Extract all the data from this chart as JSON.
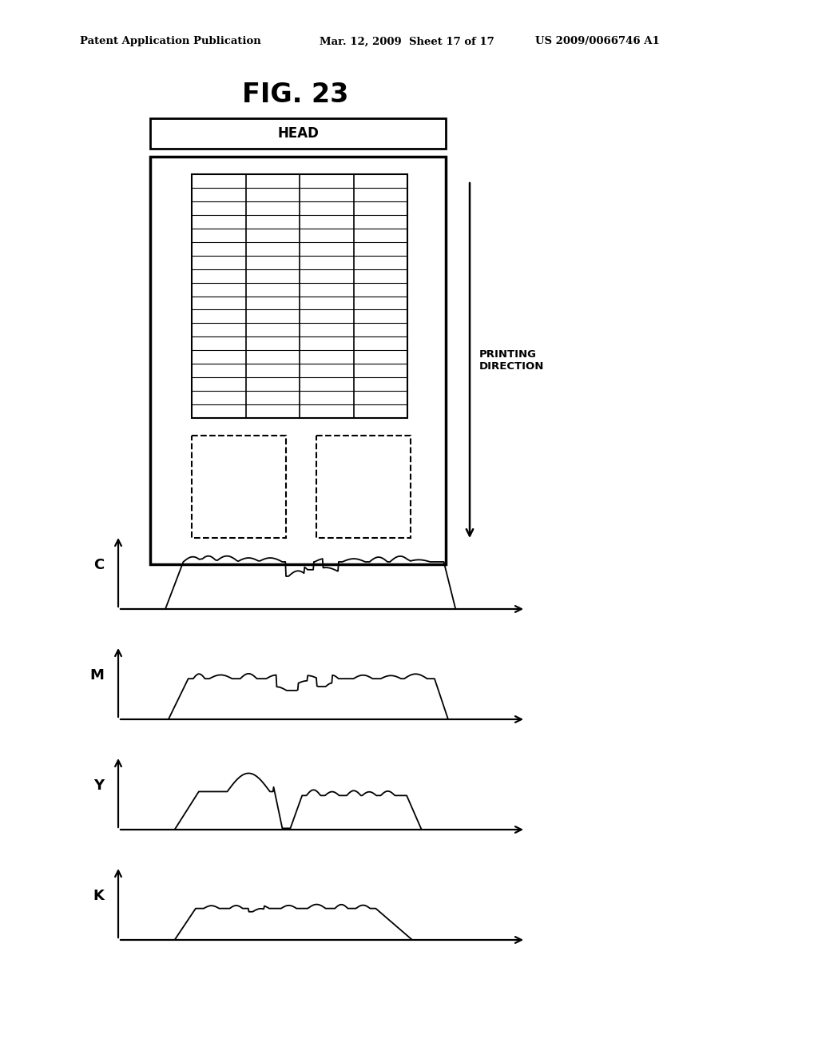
{
  "title": "FIG. 23",
  "header_left": "Patent Application Publication",
  "header_mid": "Mar. 12, 2009  Sheet 17 of 17",
  "header_right": "US 2009/0066746 A1",
  "head_label": "HEAD",
  "printing_direction_label": "PRINTING\nDIRECTION",
  "channel_labels": [
    "C",
    "M",
    "Y",
    "K"
  ],
  "grid_rows": 18,
  "grid_cols": 4,
  "background_color": "#ffffff",
  "line_color": "#000000"
}
